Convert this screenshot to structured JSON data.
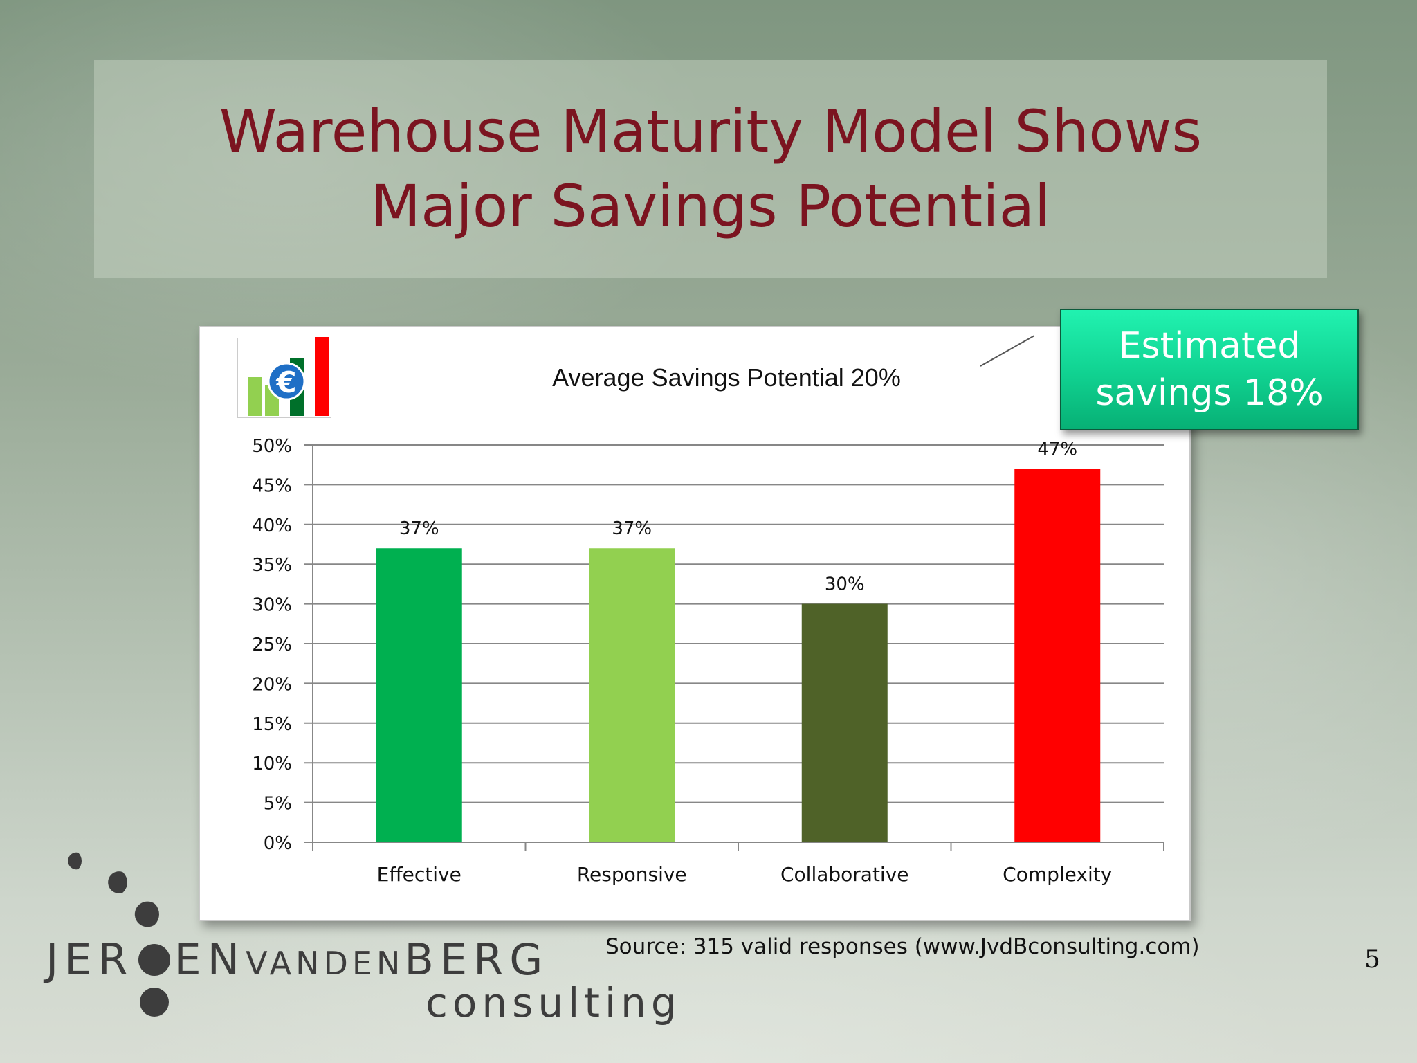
{
  "slide": {
    "title_line1": "Warehouse Maturity Model Shows",
    "title_line2": "Major Savings Potential",
    "callout_line1": "Estimated",
    "callout_line2": "savings 18%",
    "source": "Source: 315 valid responses (www.JvdBconsulting.com)",
    "page_number": "5"
  },
  "logo": {
    "name_part1": "JER",
    "name_part2": "EN",
    "name_part3": "VANDEN",
    "name_part4": "BERG",
    "sub": "consulting"
  },
  "chart_data": {
    "type": "bar",
    "title": "Average Savings Potential 20%",
    "categories": [
      "Effective",
      "Responsive",
      "Collaborative",
      "Complexity"
    ],
    "values": [
      37,
      37,
      30,
      47
    ],
    "data_labels": [
      "37%",
      "37%",
      "30%",
      "47%"
    ],
    "colors": [
      "#00b050",
      "#92d050",
      "#4f6228",
      "#ff0000"
    ],
    "ylim": [
      0,
      50
    ],
    "yticks": [
      0,
      5,
      10,
      15,
      20,
      25,
      30,
      35,
      40,
      45,
      50
    ],
    "ytick_labels": [
      "0%",
      "5%",
      "10%",
      "15%",
      "20%",
      "25%",
      "30%",
      "35%",
      "40%",
      "45%",
      "50%"
    ],
    "grid": true,
    "xlabel": "",
    "ylabel": ""
  }
}
